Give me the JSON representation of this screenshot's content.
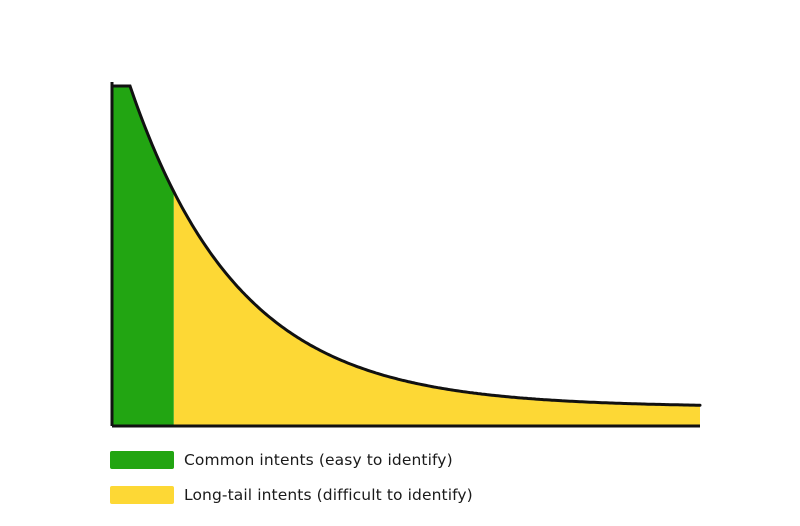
{
  "diagram": {
    "type": "long-tail-area",
    "description_hidden": false,
    "colors": {
      "head": "#22a512",
      "tail": "#fdd835",
      "outline": "#111111"
    },
    "head_fraction": 0.105
  },
  "legend": {
    "items": [
      {
        "label": "Common intents (easy to identify)",
        "color": "#22a512"
      },
      {
        "label": "Long-tail intents (difficult to identify)",
        "color": "#fdd835"
      }
    ]
  }
}
